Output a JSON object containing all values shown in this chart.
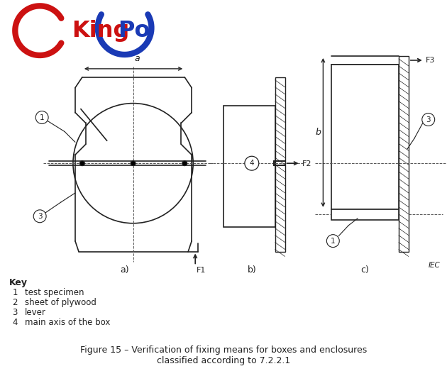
{
  "bg_color": "#ffffff",
  "line_color": "#222222",
  "dashed_color": "#555555",
  "title": "Figure 15 – Verification of fixing means for boxes and enclosures\nclassified according to 7.2.2.1",
  "title_fontsize": 9,
  "key_title": "Key",
  "key_items": [
    [
      "1",
      "test specimen"
    ],
    [
      "2",
      "sheet of plywood"
    ],
    [
      "3",
      "lever"
    ],
    [
      "4",
      "main axis of the box"
    ]
  ],
  "label_a": "a",
  "label_b": "b",
  "label_F1": "F1",
  "label_F2": "F2",
  "label_F3": "F3",
  "iec_text": "IEC",
  "logo_king_color": "#cc1111",
  "logo_po_color": "#1a3ab5"
}
